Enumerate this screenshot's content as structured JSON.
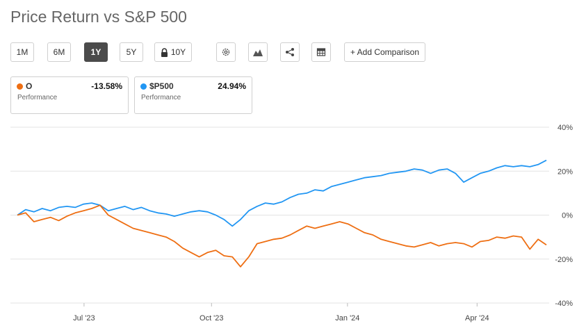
{
  "header": {
    "title": "Price Return vs S&P 500"
  },
  "toolbar": {
    "ranges": [
      {
        "label": "1M",
        "active": false
      },
      {
        "label": "6M",
        "active": false
      },
      {
        "label": "1Y",
        "active": true
      },
      {
        "label": "5Y",
        "active": false
      },
      {
        "label": "10Y",
        "active": false,
        "locked": true
      }
    ],
    "add_comparison_label": "+ Add Comparison",
    "icons": [
      "gear-icon",
      "mountain-chart-icon",
      "share-icon",
      "table-icon"
    ]
  },
  "legend_cards": [
    {
      "symbol": "O",
      "value": "-13.58%",
      "caption": "Performance",
      "color": "#ee6e12"
    },
    {
      "symbol": "$P500",
      "value": "24.94%",
      "caption": "Performance",
      "color": "#2196f3"
    }
  ],
  "chart_data": {
    "type": "line",
    "title": "Price Return vs S&P 500",
    "xlabel": "",
    "ylabel": "",
    "ylim": [
      -40,
      40
    ],
    "y_ticks": [
      "40%",
      "20%",
      "0%",
      "-20%",
      "-40%"
    ],
    "y_tick_values": [
      40,
      20,
      0,
      -20,
      -40
    ],
    "x_ticks": [
      {
        "label": "Jul '23",
        "t": 0.126
      },
      {
        "label": "Oct '23",
        "t": 0.367
      },
      {
        "label": "Jan '24",
        "t": 0.624
      },
      {
        "label": "Apr '24",
        "t": 0.869
      }
    ],
    "grid": true,
    "series": [
      {
        "name": "$P500",
        "color": "#2196f3",
        "values": [
          0,
          2.5,
          1.5,
          3,
          2,
          3.5,
          4,
          3.5,
          5,
          5.5,
          4.5,
          2,
          3,
          4,
          2.5,
          3.5,
          2,
          1,
          0.5,
          -0.5,
          0.5,
          1.5,
          2,
          1.5,
          0,
          -2,
          -5,
          -2,
          2,
          4,
          5.5,
          5,
          6,
          8,
          9.5,
          10,
          11.5,
          11,
          13,
          14,
          15,
          16,
          17,
          17.5,
          18,
          19,
          19.5,
          20,
          21,
          20.5,
          19,
          20.5,
          21,
          19,
          15,
          17,
          19,
          20,
          21.5,
          22.5,
          22,
          22.5,
          22,
          23,
          24.94
        ],
        "final_value": 24.94
      },
      {
        "name": "O",
        "color": "#ee6e12",
        "values": [
          0,
          1,
          -3,
          -2,
          -1,
          -2.5,
          -0.5,
          1,
          2,
          3,
          4.5,
          0,
          -2,
          -4,
          -6,
          -7,
          -8,
          -9,
          -10,
          -12,
          -15,
          -17,
          -19,
          -17,
          -16,
          -18.5,
          -19,
          -23.5,
          -19,
          -13,
          -12,
          -11,
          -10.5,
          -9,
          -7,
          -5,
          -6,
          -5,
          -4,
          -3,
          -4,
          -6,
          -8,
          -9,
          -11,
          -12,
          -13,
          -14,
          -14.5,
          -13.5,
          -12.5,
          -14,
          -13,
          -12.5,
          -13,
          -14.5,
          -12,
          -11.5,
          -10,
          -10.5,
          -9.5,
          -10,
          -15.5,
          -11,
          -13.58
        ],
        "final_value": -13.58
      }
    ]
  }
}
